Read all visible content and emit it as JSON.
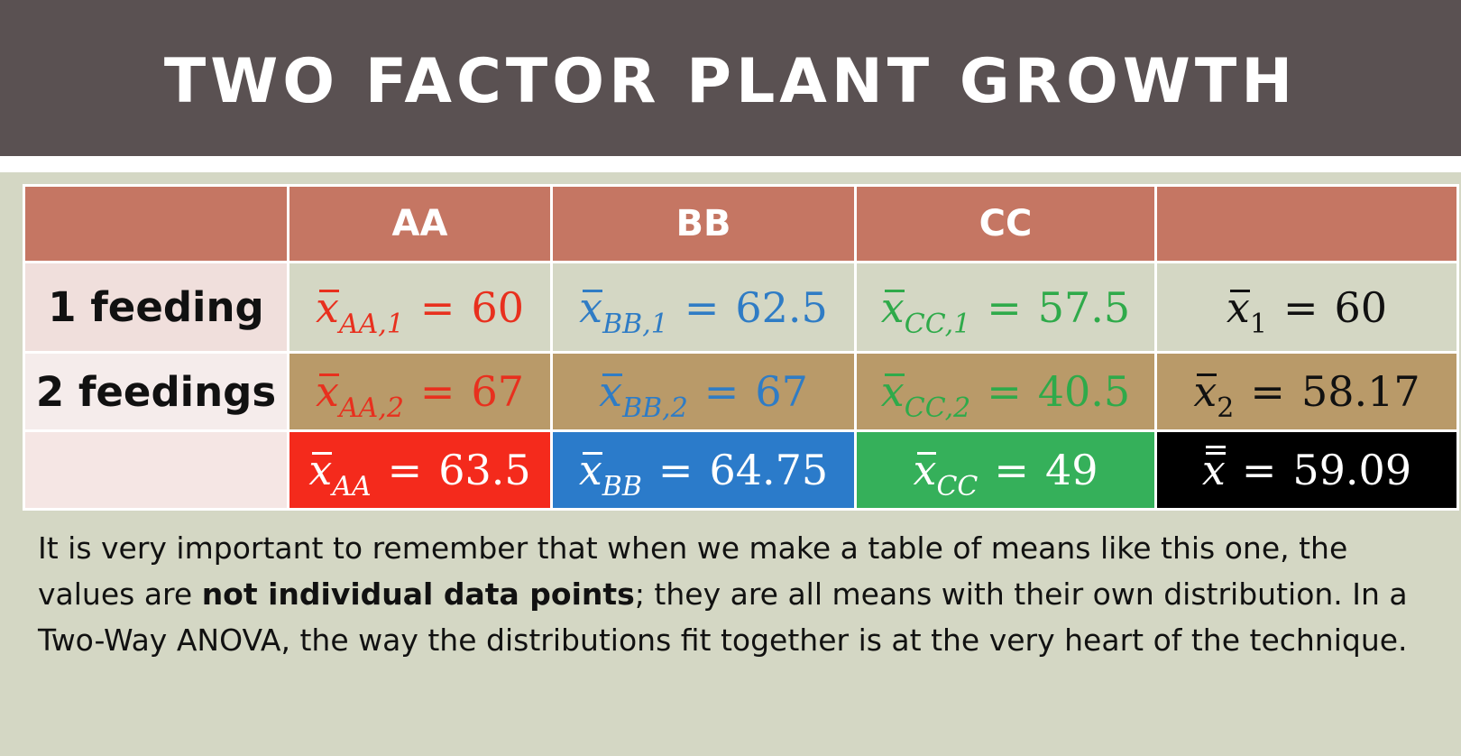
{
  "title": "TWO FACTOR PLANT GROWTH",
  "table": {
    "columns": [
      "",
      "AA",
      "BB",
      "CC",
      ""
    ],
    "rows": [
      {
        "label": "1 feeding",
        "cells": [
          {
            "sub": "AA,1",
            "value": "60"
          },
          {
            "sub": "BB,1",
            "value": "62.5"
          },
          {
            "sub": "CC,1",
            "value": "57.5"
          },
          {
            "sub": "1",
            "value": "60"
          }
        ]
      },
      {
        "label": "2 feedings",
        "cells": [
          {
            "sub": "AA,2",
            "value": "67"
          },
          {
            "sub": "BB,2",
            "value": "67"
          },
          {
            "sub": "CC,2",
            "value": "40.5"
          },
          {
            "sub": "2",
            "value": "58.17"
          }
        ]
      },
      {
        "label": "",
        "cells": [
          {
            "sub": "AA",
            "value": "63.5"
          },
          {
            "sub": "BB",
            "value": "64.75"
          },
          {
            "sub": "CC",
            "value": "49"
          },
          {
            "sub": "",
            "value": "59.09"
          }
        ]
      }
    ]
  },
  "colors": {
    "header_bg": "#5a5152",
    "table_header": "#c57663",
    "aa": "#e8301e",
    "bb": "#2f7cc5",
    "cc": "#2faa4a",
    "row2_bg": "#b99a69",
    "page_bg": "#d4d7c4"
  },
  "paragraph": {
    "part1": "It is very important to remember that when we make a table of means like this one, the values are ",
    "bold": "not individual data points",
    "part2": "; they are all means with their own distribution. In a Two-Way ANOVA, the way the distributions fit together is at the very heart of the technique."
  }
}
